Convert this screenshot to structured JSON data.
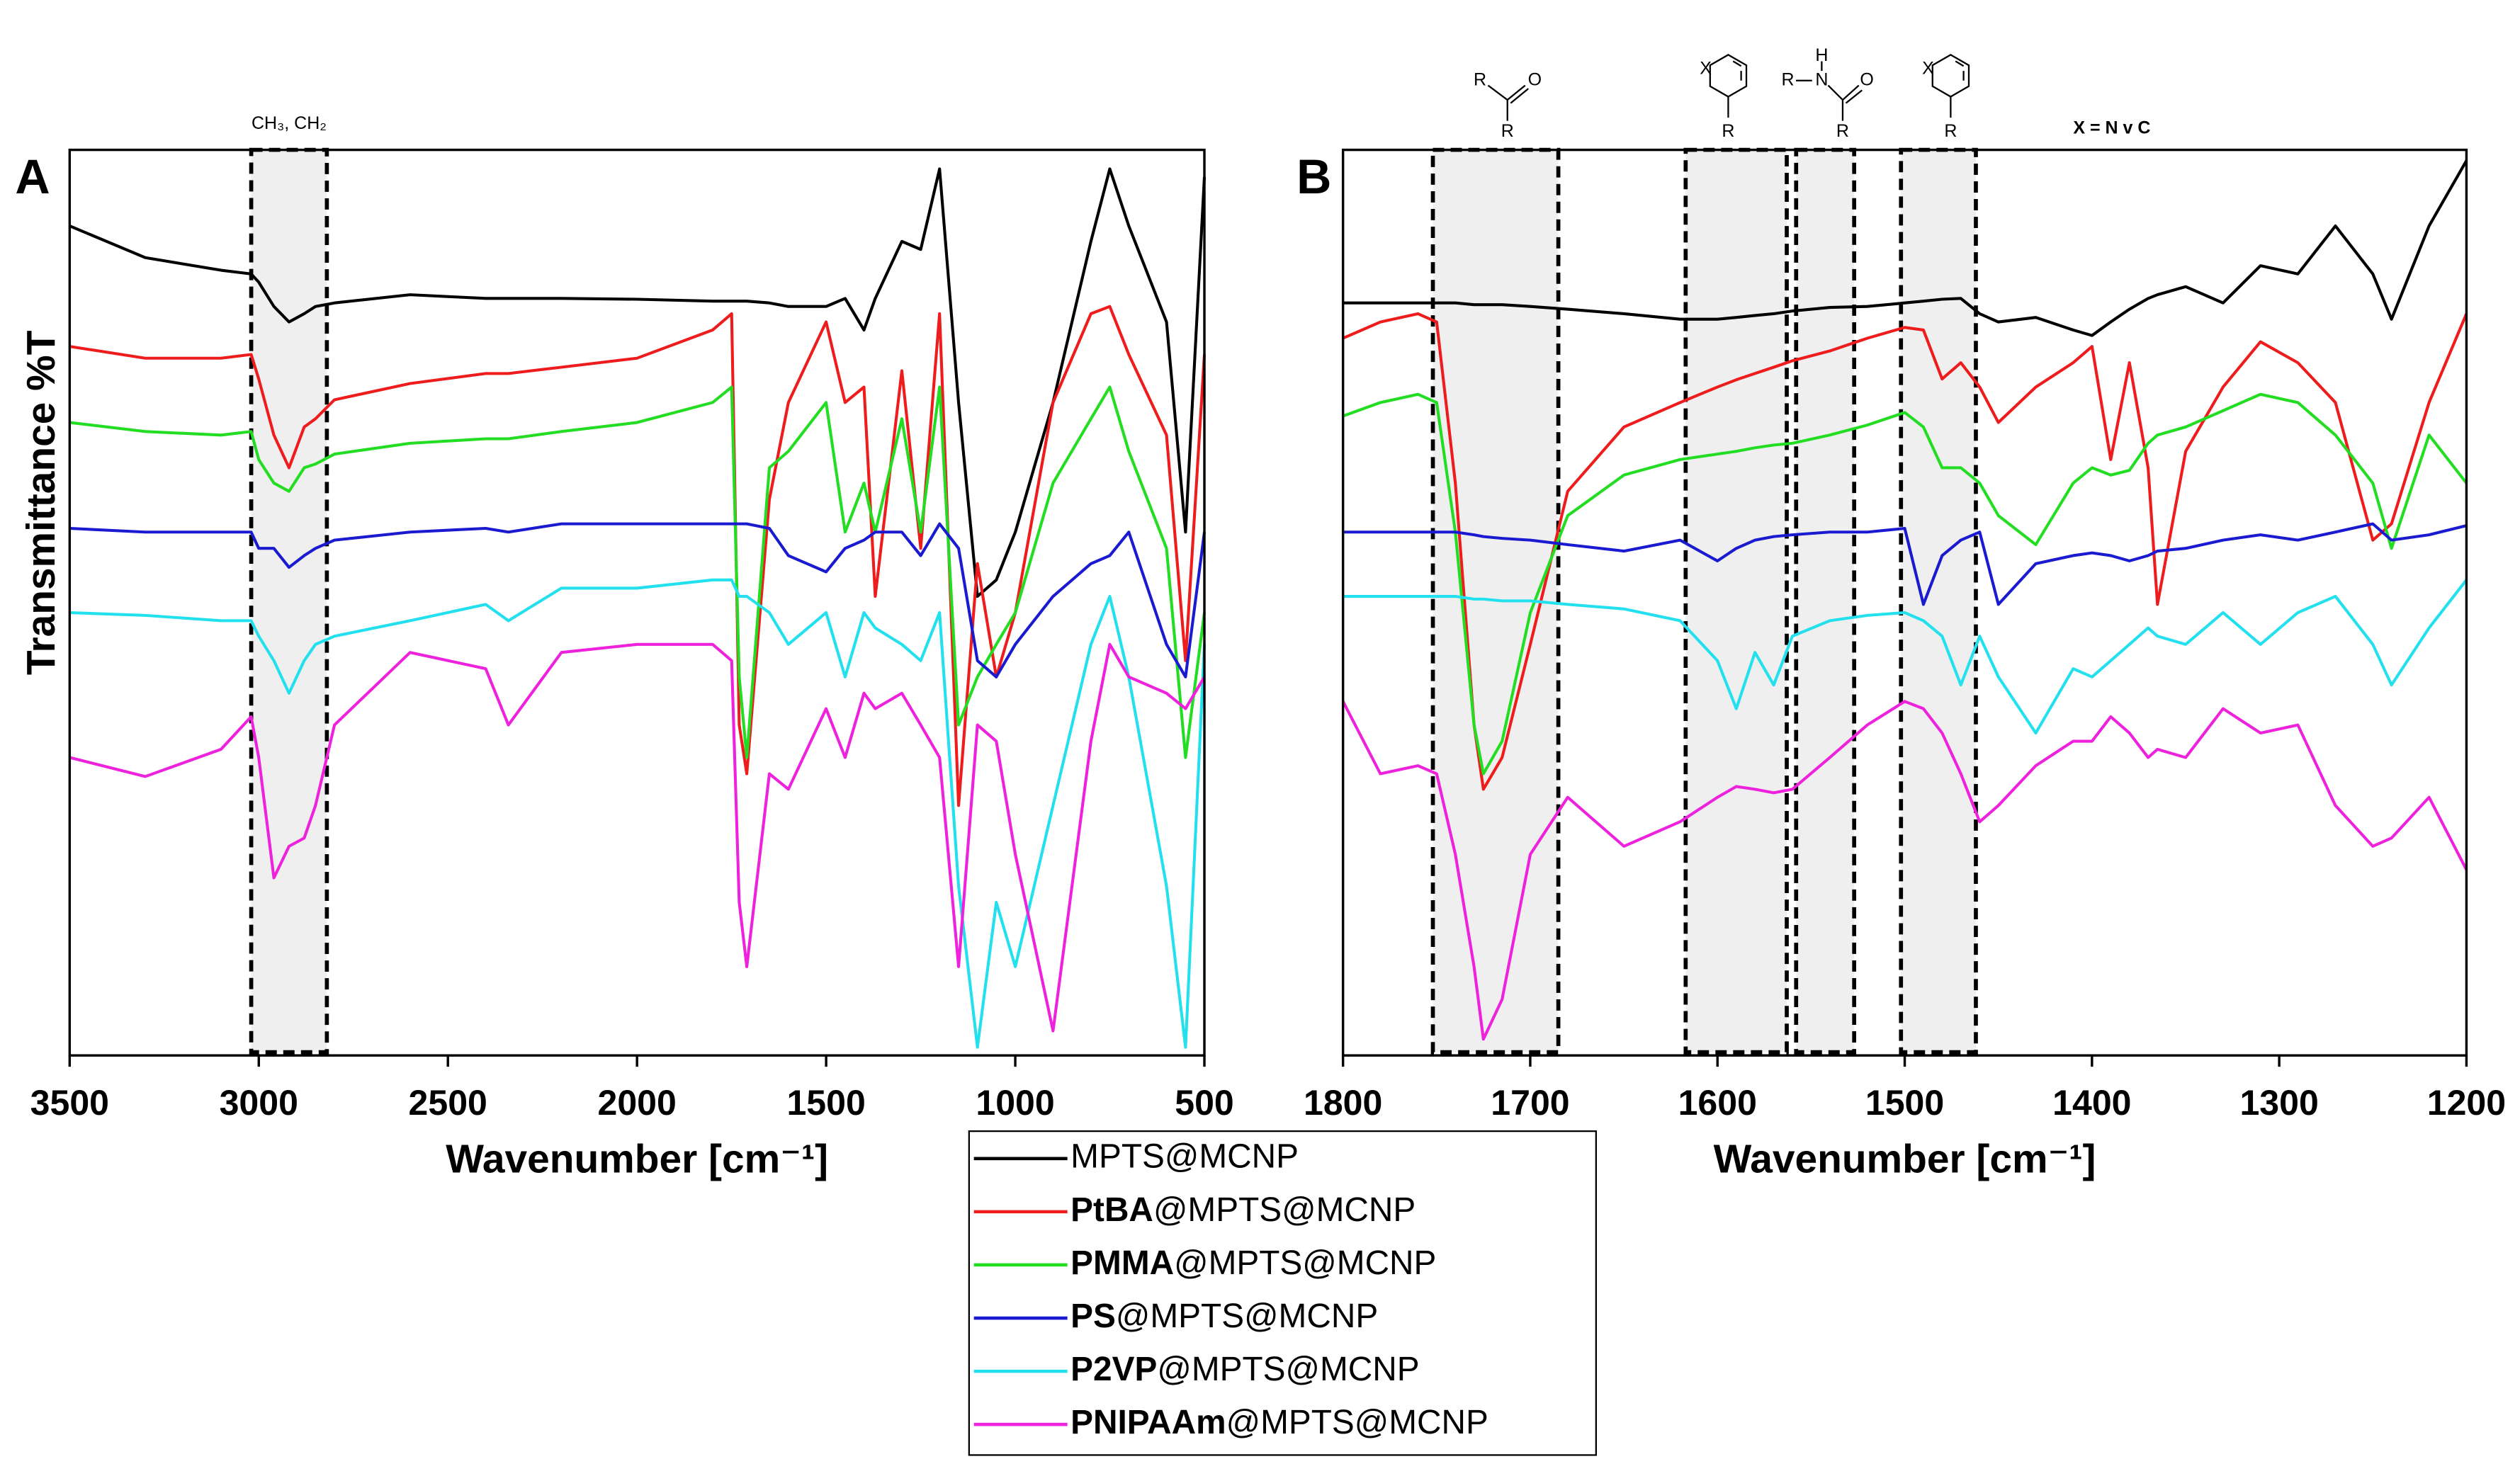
{
  "chart_data": [
    {
      "type": "line",
      "panel": "A",
      "xlabel": "Wavenumber [cm⁻¹]",
      "ylabel": "Transmittance  %T",
      "xlim": [
        3500,
        500
      ],
      "xticks": [
        3500,
        3000,
        2500,
        2000,
        1500,
        1000,
        500
      ],
      "ylim": [
        0,
        100
      ],
      "regions": [
        {
          "x": [
            3020,
            2820
          ],
          "label": "CH₃,  CH₂"
        }
      ],
      "x": [
        3500,
        3300,
        3100,
        3020,
        3000,
        2960,
        2920,
        2880,
        2850,
        2800,
        2600,
        2400,
        2340,
        2200,
        2000,
        1800,
        1750,
        1730,
        1710,
        1650,
        1600,
        1500,
        1450,
        1400,
        1370,
        1300,
        1250,
        1200,
        1150,
        1100,
        1050,
        1000,
        900,
        800,
        750,
        700,
        600,
        550,
        500
      ],
      "series": [
        {
          "name": "MPTS@MCNP",
          "emphasis": false,
          "color": "#000000",
          "values": [
            91.6,
            88.1,
            86.7,
            86.3,
            85.4,
            82.7,
            81,
            81.9,
            82.7,
            83.1,
            84,
            83.6,
            83.6,
            83.6,
            83.5,
            83.3,
            83.3,
            83.3,
            83.3,
            83.1,
            82.7,
            82.7,
            83.6,
            80.1,
            83.6,
            89.9,
            89,
            97.9,
            72.1,
            50.7,
            52.5,
            57.8,
            72.1,
            89.9,
            97.9,
            91.6,
            81,
            57.8,
            97
          ]
        },
        {
          "name": "PtBA@MPTS@MCNP",
          "emphasis": true,
          "color": "#ee1c1c",
          "values": [
            78.3,
            77,
            77,
            77.4,
            74.7,
            68.5,
            64.9,
            69.4,
            70.3,
            72.4,
            74.2,
            75.3,
            75.3,
            76,
            77,
            80.1,
            81.9,
            36.5,
            31.1,
            61.4,
            72.1,
            81,
            72.1,
            73.8,
            50.7,
            75.6,
            56,
            81.9,
            27.6,
            54.3,
            41.8,
            48.9,
            72.1,
            81.9,
            82.7,
            77.4,
            68.5,
            43.6,
            77.4
          ]
        },
        {
          "name": "PMMA@MPTS@MCNP",
          "emphasis": true,
          "color": "#22dd22",
          "values": [
            69.9,
            68.9,
            68.5,
            68.9,
            65.8,
            63.2,
            62.3,
            64.9,
            65.3,
            66.4,
            67.6,
            68.1,
            68.1,
            68.9,
            69.9,
            72.1,
            73.8,
            41.8,
            32.9,
            64.9,
            66.7,
            72.1,
            57.8,
            63.2,
            57.8,
            70.3,
            57.8,
            73.8,
            36.5,
            41.8,
            45.4,
            48.9,
            63.2,
            70.3,
            73.8,
            66.7,
            56,
            32.9,
            48.9
          ]
        },
        {
          "name": "PS@MPTS@MCNP",
          "emphasis": true,
          "color": "#1a1ad0",
          "values": [
            58.2,
            57.8,
            57.8,
            57.8,
            56,
            56,
            53.9,
            55.2,
            56,
            56.9,
            57.8,
            58.2,
            57.8,
            58.7,
            58.7,
            58.7,
            58.7,
            58.7,
            58.7,
            58.2,
            55.2,
            53.4,
            56,
            56.9,
            57.8,
            57.8,
            55.2,
            58.7,
            56,
            43.6,
            41.8,
            45.4,
            50.7,
            54.3,
            55.2,
            57.8,
            45.4,
            41.8,
            57.8
          ]
        },
        {
          "name": "P2VP@MPTS@MCNP",
          "emphasis": true,
          "color": "#22e0ee",
          "values": [
            48.9,
            48.6,
            48,
            48,
            46.3,
            43.6,
            40,
            43.6,
            45.4,
            46.3,
            48,
            49.8,
            48,
            51.6,
            51.6,
            52.5,
            52.5,
            50.7,
            50.7,
            48.9,
            45.4,
            48.9,
            41.8,
            48.9,
            47.2,
            45.4,
            43.6,
            48.9,
            18.7,
            0.9,
            16.9,
            9.8,
            27.6,
            45.4,
            50.7,
            41.8,
            18.7,
            0.9,
            45.4
          ]
        },
        {
          "name": "PNIPAAm@MPTS@MCNP",
          "emphasis": true,
          "color": "#ee22dd",
          "values": [
            32.9,
            30.8,
            33.8,
            37.4,
            32.9,
            19.6,
            23.1,
            24,
            27.6,
            36.5,
            44.5,
            42.7,
            36.5,
            44.5,
            45.4,
            45.4,
            43.6,
            16.9,
            9.8,
            31.1,
            29.4,
            38.3,
            32.9,
            40,
            38.3,
            40,
            36.5,
            32.9,
            9.8,
            36.5,
            34.7,
            22.2,
            2.7,
            34.7,
            45.4,
            41.8,
            40,
            38.3,
            41.8
          ]
        }
      ]
    },
    {
      "type": "line",
      "panel": "B",
      "xlabel": "Wavenumber [cm⁻¹]",
      "xlim": [
        1800,
        1200
      ],
      "xticks": [
        1800,
        1700,
        1600,
        1500,
        1400,
        1300,
        1200
      ],
      "ylim": [
        0,
        100
      ],
      "regions": [
        {
          "x": [
            1752,
            1685
          ]
        },
        {
          "x": [
            1617,
            1563
          ]
        },
        {
          "x": [
            1558,
            1527
          ]
        },
        {
          "x": [
            1502,
            1462
          ]
        }
      ],
      "structures": [
        {
          "labels": [
            "R",
            "O",
            "R"
          ]
        },
        {
          "labels": [
            "X",
            "R"
          ]
        },
        {
          "labels": [
            "R",
            "H",
            "N",
            "O",
            "R"
          ]
        },
        {
          "labels": [
            "X",
            "R"
          ]
        }
      ],
      "annotation": "X = N v C",
      "x": [
        1800,
        1780,
        1760,
        1750,
        1740,
        1730,
        1725,
        1715,
        1700,
        1680,
        1650,
        1620,
        1600,
        1590,
        1580,
        1570,
        1560,
        1540,
        1520,
        1500,
        1490,
        1480,
        1470,
        1460,
        1450,
        1430,
        1410,
        1400,
        1390,
        1380,
        1370,
        1365,
        1350,
        1330,
        1310,
        1290,
        1270,
        1250,
        1240,
        1220,
        1200
      ],
      "series": [
        {
          "color": "#000000",
          "values": [
            83.1,
            83.1,
            83.1,
            83.1,
            83.1,
            82.9,
            82.9,
            82.9,
            82.7,
            82.4,
            81.9,
            81.3,
            81.3,
            81.5,
            81.7,
            81.9,
            82.2,
            82.6,
            82.7,
            83.1,
            83.3,
            83.5,
            83.6,
            81.9,
            81,
            81.5,
            80.1,
            79.5,
            81,
            82.4,
            83.6,
            84,
            84.9,
            83.1,
            87.2,
            86.3,
            91.6,
            86.3,
            81.3,
            91.6,
            98.8
          ]
        },
        {
          "color": "#ee1c1c",
          "values": [
            79.2,
            81,
            81.9,
            81,
            63.2,
            36.5,
            29.4,
            32.9,
            45.4,
            62.3,
            69.4,
            72.1,
            73.8,
            74.6,
            75.3,
            76,
            76.7,
            77.8,
            79.2,
            80.4,
            80.1,
            74.7,
            76.5,
            73.8,
            69.9,
            73.8,
            76.5,
            78.3,
            65.8,
            76.5,
            64.9,
            49.8,
            66.7,
            73.8,
            78.8,
            76.5,
            72.1,
            56.9,
            58.7,
            72.1,
            81.9
          ]
        },
        {
          "color": "#22dd22",
          "values": [
            70.6,
            72.1,
            73,
            72.1,
            57.8,
            36.5,
            31.1,
            34.7,
            48.9,
            59.6,
            64.1,
            65.8,
            66.4,
            66.7,
            67.1,
            67.4,
            67.6,
            68.5,
            69.6,
            71,
            69.4,
            64.9,
            64.9,
            63.2,
            59.6,
            56.4,
            63.2,
            64.9,
            64.1,
            64.6,
            67.6,
            68.5,
            69.4,
            71.2,
            73,
            72.1,
            68.5,
            63.2,
            56,
            68.5,
            63.2
          ]
        },
        {
          "color": "#1a1ad0",
          "values": [
            57.8,
            57.8,
            57.8,
            57.8,
            57.8,
            57.5,
            57.3,
            57.1,
            56.9,
            56.4,
            55.7,
            56.9,
            54.6,
            56,
            56.9,
            57.3,
            57.5,
            57.8,
            57.8,
            58.2,
            49.8,
            55.2,
            56.9,
            57.8,
            49.8,
            54.3,
            55.2,
            55.5,
            55.2,
            54.6,
            55.2,
            55.7,
            56,
            56.9,
            57.5,
            56.9,
            57.8,
            58.7,
            56.9,
            57.5,
            58.5
          ]
        },
        {
          "color": "#22e0ee",
          "values": [
            50.7,
            50.7,
            50.7,
            50.7,
            50.7,
            50.4,
            50.4,
            50.2,
            50.2,
            49.8,
            49.3,
            48,
            43.6,
            38.3,
            44.5,
            40.9,
            46.3,
            48,
            48.6,
            48.9,
            48,
            46.3,
            40.9,
            46.3,
            41.8,
            35.6,
            42.7,
            41.8,
            43.6,
            45.4,
            47.2,
            46.3,
            45.4,
            48.9,
            45.4,
            48.9,
            50.7,
            45.4,
            40.9,
            47.2,
            52.5
          ]
        },
        {
          "color": "#ee22dd",
          "values": [
            39.1,
            31.1,
            32,
            31.1,
            22.2,
            9.8,
            1.8,
            6.2,
            22.2,
            28.5,
            23.1,
            25.8,
            28.5,
            29.7,
            29.4,
            29,
            29.4,
            32.9,
            36.5,
            39.1,
            38.3,
            35.6,
            31.1,
            25.8,
            27.6,
            32,
            34.7,
            34.7,
            37.4,
            35.6,
            32.9,
            33.8,
            32.9,
            38.3,
            35.6,
            36.5,
            27.6,
            23.1,
            24,
            28.5,
            20.5
          ]
        }
      ]
    }
  ]
}
